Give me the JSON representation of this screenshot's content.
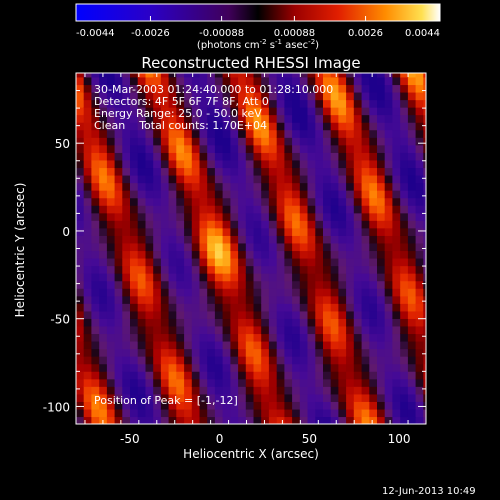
{
  "chart_data": {
    "type": "heatmap",
    "title": "Reconstructed RHESSI Image",
    "xlabel": "Heliocentric X (arcsec)",
    "ylabel": "Heliocentric Y (arcsec)",
    "xlim": [
      -80,
      115
    ],
    "ylim": [
      -110,
      90
    ],
    "xticks": [
      -50,
      0,
      50,
      100
    ],
    "yticks": [
      50,
      0,
      -50,
      -100
    ],
    "colorbar": {
      "range": [
        -0.0044,
        0.0044
      ],
      "ticks": [
        "-0.0044",
        "-0.0026",
        "-0.00088",
        "0.00088",
        "0.0026",
        "0.0044"
      ],
      "label_prefix": "(photons cm",
      "label_exp1": "-2",
      "label_mid": " s",
      "label_exp2": "-1",
      "label_mid2": " asec",
      "label_exp3": "-2",
      "label_suffix": ")"
    },
    "annotations": {
      "time_range": "30-Mar-2003 01:24:40.000 to 01:28:10.000",
      "detectors": "Detectors: 4F 5F 6F 7F 8F, Att 0",
      "energy_range": "Energy Range: 25.0 - 50.0 keV",
      "clean_counts": "Clean    Total counts: 1.70E+04",
      "peak_position": "Position of Peak = [-1,-12]"
    },
    "peak": [
      -1,
      -12
    ],
    "fringe": {
      "peak_x": -1,
      "peak_y": -12,
      "spacing": 46,
      "direction_deg": 20
    }
  },
  "footer": {
    "timestamp": "12-Jun-2013 10:49"
  }
}
